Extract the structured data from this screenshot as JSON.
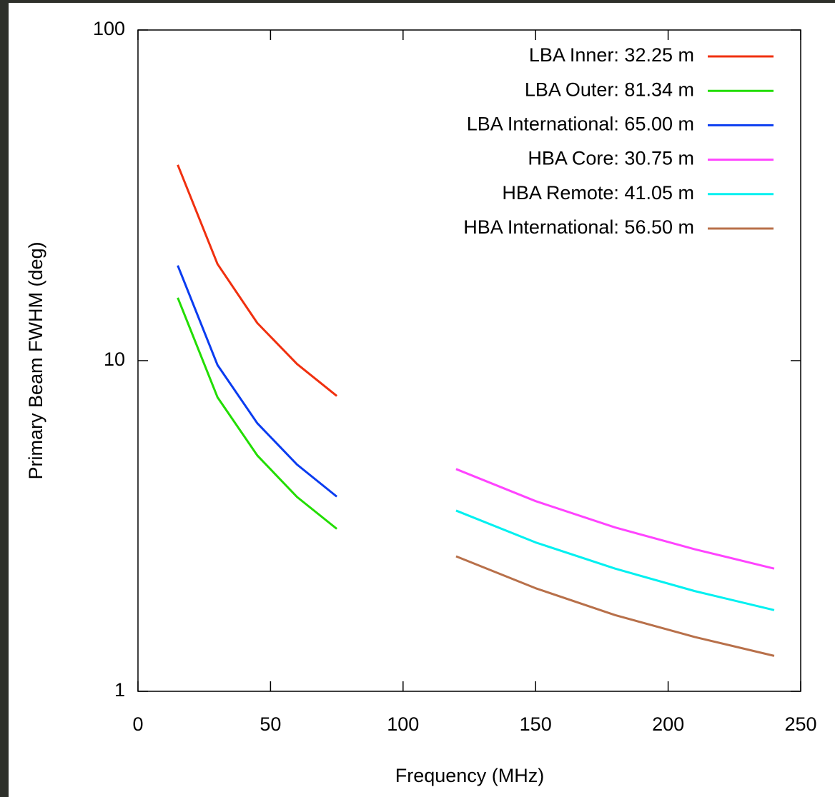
{
  "chart_data": {
    "type": "line",
    "xlabel": "Frequency (MHz)",
    "ylabel": "Primary Beam FWHM (deg)",
    "xlim": [
      0,
      250
    ],
    "xticks": [
      0,
      50,
      100,
      150,
      200,
      250
    ],
    "ylim": [
      1,
      100
    ],
    "yticks": [
      1,
      10,
      100
    ],
    "y_log_scale": true,
    "legend_position": "upper right",
    "series": [
      {
        "name": "LBA Inner: 32.25 m",
        "color": "#f0300f",
        "x": [
          15,
          30,
          45,
          60,
          75
        ],
        "values": [
          39.1,
          19.6,
          13.0,
          9.77,
          7.82
        ]
      },
      {
        "name": "LBA Outer: 81.34 m",
        "color": "#22dd00",
        "x": [
          15,
          30,
          45,
          60,
          75
        ],
        "values": [
          15.5,
          7.75,
          5.17,
          3.87,
          3.1
        ]
      },
      {
        "name": "LBA International: 65.00 m",
        "color": "#0a3cf0",
        "x": [
          15,
          30,
          45,
          60,
          75
        ],
        "values": [
          19.4,
          9.7,
          6.47,
          4.85,
          3.88
        ]
      },
      {
        "name": "HBA Core: 30.75 m",
        "color": "#ff44ff",
        "x": [
          120,
          150,
          180,
          210,
          240
        ],
        "values": [
          4.7,
          3.76,
          3.13,
          2.69,
          2.35
        ]
      },
      {
        "name": "HBA Remote: 41.05 m",
        "color": "#00f0f0",
        "x": [
          120,
          150,
          180,
          210,
          240
        ],
        "values": [
          3.52,
          2.82,
          2.35,
          2.01,
          1.76
        ]
      },
      {
        "name": "HBA International: 56.50 m",
        "color": "#b8704a",
        "x": [
          120,
          150,
          180,
          210,
          240
        ],
        "values": [
          2.56,
          2.05,
          1.7,
          1.46,
          1.28
        ]
      }
    ]
  }
}
